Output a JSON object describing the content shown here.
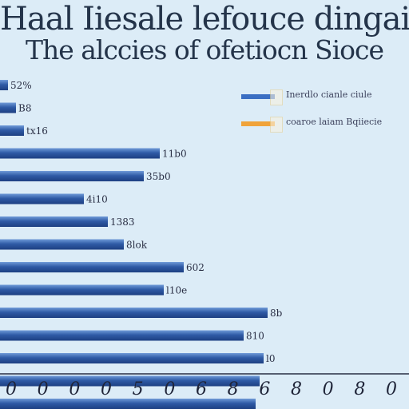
{
  "title": {
    "line1": "Haal Iiesale lefouce dingai",
    "line2": "The alccies of ofetiocn Sioce"
  },
  "legend": [
    {
      "label": "Inerdlo cianle ciule",
      "color": "#3b6fc3"
    },
    {
      "label": "coaroe laiam Bqiiecie",
      "color": "#f0a33a"
    }
  ],
  "chart_data": {
    "type": "bar",
    "orientation": "horizontal",
    "title": "Haal Iiesale lefouce dingai The alccies of ofetiocn Sioce",
    "categories": [
      "",
      "",
      "",
      "",
      "",
      "",
      "",
      "",
      "",
      "",
      "",
      "",
      "",
      "",
      ""
    ],
    "series": [
      {
        "values": [
          2,
          4,
          6,
          40,
          36,
          21,
          27,
          31,
          46,
          41,
          67,
          61,
          66,
          65,
          64
        ]
      }
    ],
    "value_labels": [
      "52%",
      "B8",
      "tx16",
      "11b0",
      "35b0",
      "4i10",
      "1383",
      "8lok",
      "602",
      "l10e",
      "8b",
      "810",
      "l0",
      "",
      ""
    ],
    "x_tick_labels": [
      "0",
      "0",
      "0",
      "0",
      "5",
      "0",
      "6",
      "8",
      "6",
      "8",
      "0",
      "8",
      "0"
    ],
    "xlim": [
      0,
      100
    ],
    "grid": false,
    "legend_position": "top-right"
  }
}
